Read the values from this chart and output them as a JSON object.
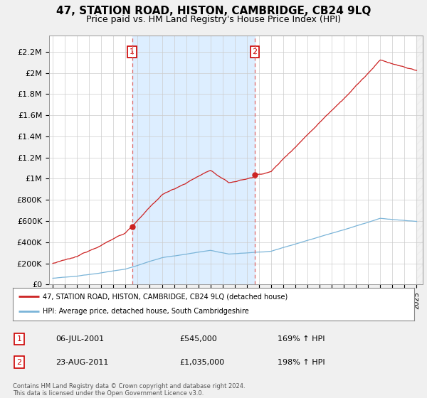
{
  "title": "47, STATION ROAD, HISTON, CAMBRIDGE, CB24 9LQ",
  "subtitle": "Price paid vs. HM Land Registry's House Price Index (HPI)",
  "title_fontsize": 11,
  "subtitle_fontsize": 9,
  "ylim_max": 2350000,
  "yticks": [
    0,
    200000,
    400000,
    600000,
    800000,
    1000000,
    1200000,
    1400000,
    1600000,
    1800000,
    2000000,
    2200000
  ],
  "ytick_labels": [
    "£0",
    "£200K",
    "£400K",
    "£600K",
    "£800K",
    "£1M",
    "£1.2M",
    "£1.4M",
    "£1.6M",
    "£1.8M",
    "£2M",
    "£2.2M"
  ],
  "hpi_line_color": "#7ab4d8",
  "price_line_color": "#cc2222",
  "shade_color": "#ddeeff",
  "annotation_color": "#cc0000",
  "vline_color": "#dd6666",
  "sale1_year": 2001.54,
  "sale1_price": 545000,
  "sale1_hpi_ratio": 1.69,
  "sale2_year": 2011.65,
  "sale2_price": 1035000,
  "sale2_hpi_ratio": 1.98,
  "sale1_date": "06-JUL-2001",
  "sale1_price_str": "£545,000",
  "sale1_hpi": "169% ↑ HPI",
  "sale2_date": "23-AUG-2011",
  "sale2_price_str": "£1,035,000",
  "sale2_hpi": "198% ↑ HPI",
  "legend_label1": "47, STATION ROAD, HISTON, CAMBRIDGE, CB24 9LQ (detached house)",
  "legend_label2": "HPI: Average price, detached house, South Cambridgeshire",
  "footer": "Contains HM Land Registry data © Crown copyright and database right 2024.\nThis data is licensed under the Open Government Licence v3.0.",
  "bg_color": "#f0f0f0",
  "plot_bg_color": "#ffffff",
  "grid_color": "#cccccc"
}
